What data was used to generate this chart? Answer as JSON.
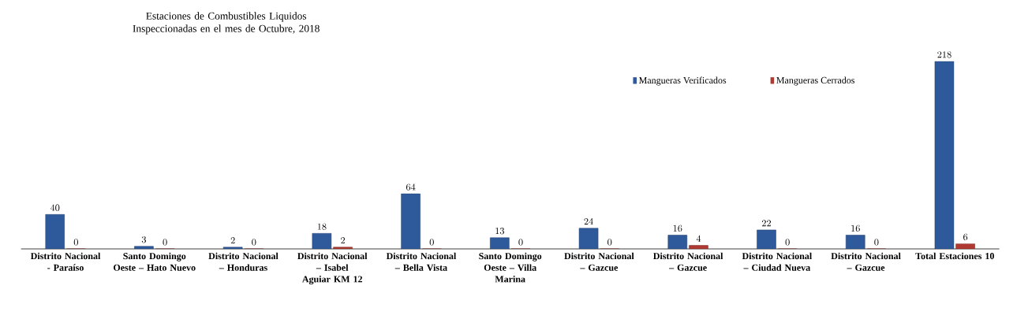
{
  "chart_data": {
    "type": "bar",
    "title": "Estaciones de Combustibles Liquidos Inspeccionadas en el mes de Octubre, 2018",
    "categories": [
      "Distrito Nacional - Paraíso",
      "Santo Domingo Oeste – Hato Nuevo",
      "Distrito Nacional – Honduras",
      "Distrito Nacional – Isabel Aguiar KM 12",
      "Distrito Nacional – Bella Vista",
      "Santo Domingo Oeste – Villa Marina",
      "Distrito Nacional – Gazcue",
      "Distrito Nacional – Gazcue",
      "Distrito Nacional – Ciudad Nueva",
      "Distrito Nacional – Gazcue",
      "Total Estaciones 10"
    ],
    "series": [
      {
        "name": "Mangueras  Verificados",
        "color": "#2e5a9c",
        "values": [
          40,
          3,
          2,
          18,
          64,
          13,
          24,
          16,
          22,
          16,
          218
        ]
      },
      {
        "name": "Mangueras  Cerrados",
        "color": "#b03a32",
        "values": [
          0,
          0,
          0,
          2,
          0,
          0,
          0,
          4,
          0,
          0,
          6
        ]
      }
    ],
    "data_labels": true,
    "legend": "top",
    "tick_labels": "x"
  }
}
